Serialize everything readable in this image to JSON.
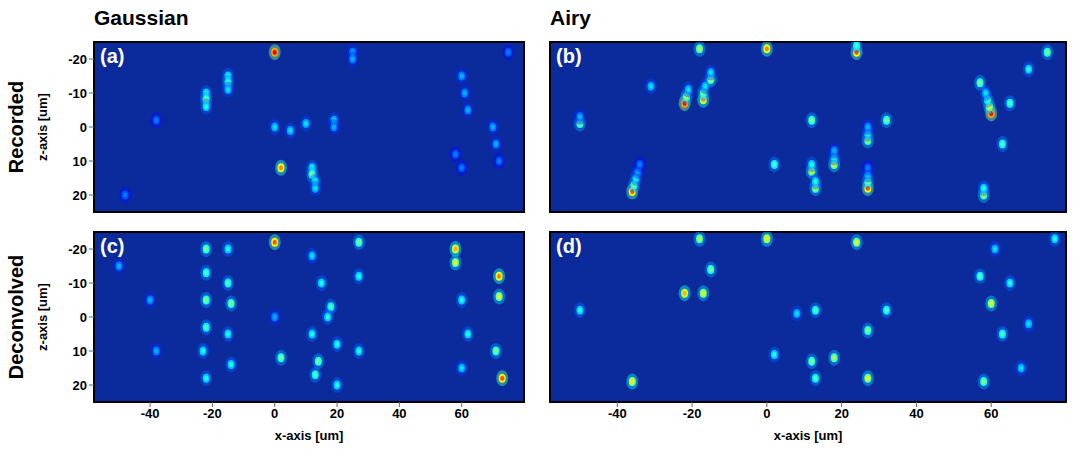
{
  "columns": [
    "Gaussian",
    "Airy"
  ],
  "rows": [
    "Recorded",
    "Deconvolved"
  ],
  "chart_data": [
    {
      "type": "scatter",
      "panel_label": "(a)",
      "ylabel": "z-axis [um]",
      "tick_labels": "y",
      "xlim": [
        -58,
        80
      ],
      "xticks": [
        -40,
        -20,
        0,
        20,
        40,
        60
      ],
      "ylim": [
        25,
        -25
      ],
      "yticks": [
        -20,
        -10,
        0,
        10,
        20
      ],
      "spots": [
        {
          "x": 0,
          "z": -22,
          "intensity": 0.9
        },
        {
          "x": 2,
          "z": 12,
          "intensity": 0.75
        },
        {
          "x": 0,
          "z": 0,
          "intensity": 0.35
        },
        {
          "x": 5,
          "z": 1,
          "intensity": 0.35
        },
        {
          "x": -22,
          "z": -10,
          "intensity": 0.4
        },
        {
          "x": -22,
          "z": -8,
          "intensity": 0.5
        },
        {
          "x": -22,
          "z": -6,
          "intensity": 0.4
        },
        {
          "x": -15,
          "z": -15,
          "intensity": 0.4
        },
        {
          "x": -15,
          "z": -13,
          "intensity": 0.45
        },
        {
          "x": -15,
          "z": -11,
          "intensity": 0.35
        },
        {
          "x": 10,
          "z": -1,
          "intensity": 0.35
        },
        {
          "x": 12,
          "z": 12,
          "intensity": 0.4
        },
        {
          "x": 12,
          "z": 14,
          "intensity": 0.5
        },
        {
          "x": 13,
          "z": 16,
          "intensity": 0.4
        },
        {
          "x": 13,
          "z": 18,
          "intensity": 0.35
        },
        {
          "x": 19,
          "z": -2,
          "intensity": 0.35
        },
        {
          "x": 19,
          "z": 0,
          "intensity": 0.3
        },
        {
          "x": 25,
          "z": -22,
          "intensity": 0.3
        },
        {
          "x": 25,
          "z": -20,
          "intensity": 0.3
        },
        {
          "x": -38,
          "z": -2,
          "intensity": 0.25
        },
        {
          "x": 60,
          "z": -15,
          "intensity": 0.3
        },
        {
          "x": 61,
          "z": -10,
          "intensity": 0.3
        },
        {
          "x": 62,
          "z": -5,
          "intensity": 0.3
        },
        {
          "x": 58,
          "z": 8,
          "intensity": 0.25
        },
        {
          "x": 60,
          "z": 12,
          "intensity": 0.25
        },
        {
          "x": 70,
          "z": 0,
          "intensity": 0.3
        },
        {
          "x": 71,
          "z": 5,
          "intensity": 0.3
        },
        {
          "x": 72,
          "z": 10,
          "intensity": 0.25
        },
        {
          "x": 75,
          "z": -22,
          "intensity": 0.25
        },
        {
          "x": -48,
          "z": 20,
          "intensity": 0.25
        }
      ]
    },
    {
      "type": "scatter",
      "panel_label": "(b)",
      "tick_labels": false,
      "xlim": [
        -58,
        80
      ],
      "xticks": [
        -40,
        -20,
        0,
        20,
        40,
        60
      ],
      "ylim": [
        25,
        -25
      ],
      "yticks": [
        -20,
        -10,
        0,
        10,
        20
      ],
      "spots": [
        {
          "x": 0,
          "z": -23,
          "intensity": 0.75
        },
        {
          "x": -18,
          "z": -23,
          "intensity": 0.55
        },
        {
          "x": 24,
          "z": -22,
          "intensity": 0.8
        },
        {
          "x": 24,
          "z": -24,
          "intensity": 0.45
        },
        {
          "x": -22,
          "z": -7,
          "intensity": 0.9
        },
        {
          "x": -21.5,
          "z": -9,
          "intensity": 0.55
        },
        {
          "x": -21,
          "z": -11,
          "intensity": 0.35
        },
        {
          "x": -17,
          "z": -8,
          "intensity": 0.7
        },
        {
          "x": -17,
          "z": -10,
          "intensity": 0.5
        },
        {
          "x": -16.5,
          "z": -12,
          "intensity": 0.35
        },
        {
          "x": -15,
          "z": -14,
          "intensity": 0.55
        },
        {
          "x": -15,
          "z": -16,
          "intensity": 0.35
        },
        {
          "x": -50,
          "z": -1,
          "intensity": 0.5
        },
        {
          "x": -50,
          "z": -3,
          "intensity": 0.3
        },
        {
          "x": -36,
          "z": 19,
          "intensity": 0.8
        },
        {
          "x": -35.5,
          "z": 17,
          "intensity": 0.5
        },
        {
          "x": -35,
          "z": 15,
          "intensity": 0.4
        },
        {
          "x": -34.5,
          "z": 13,
          "intensity": 0.3
        },
        {
          "x": -34,
          "z": 11,
          "intensity": 0.25
        },
        {
          "x": 12,
          "z": -2,
          "intensity": 0.5
        },
        {
          "x": 18,
          "z": 11,
          "intensity": 0.6
        },
        {
          "x": 18,
          "z": 9,
          "intensity": 0.4
        },
        {
          "x": 18,
          "z": 7,
          "intensity": 0.3
        },
        {
          "x": 12,
          "z": 13,
          "intensity": 0.6
        },
        {
          "x": 12,
          "z": 11,
          "intensity": 0.4
        },
        {
          "x": 13,
          "z": 18,
          "intensity": 0.55
        },
        {
          "x": 13,
          "z": 16,
          "intensity": 0.4
        },
        {
          "x": 27,
          "z": 18,
          "intensity": 0.8
        },
        {
          "x": 27,
          "z": 16,
          "intensity": 0.5
        },
        {
          "x": 27,
          "z": 14,
          "intensity": 0.35
        },
        {
          "x": 27,
          "z": 12,
          "intensity": 0.25
        },
        {
          "x": 27,
          "z": 4,
          "intensity": 0.55
        },
        {
          "x": 27,
          "z": 2,
          "intensity": 0.4
        },
        {
          "x": 27,
          "z": 0,
          "intensity": 0.3
        },
        {
          "x": 32,
          "z": -2,
          "intensity": 0.5
        },
        {
          "x": -31,
          "z": -12,
          "intensity": 0.35
        },
        {
          "x": 2,
          "z": 11,
          "intensity": 0.45
        },
        {
          "x": 60,
          "z": -4,
          "intensity": 0.9
        },
        {
          "x": 59.5,
          "z": -6,
          "intensity": 0.6
        },
        {
          "x": 59,
          "z": -8,
          "intensity": 0.45
        },
        {
          "x": 58.5,
          "z": -10,
          "intensity": 0.35
        },
        {
          "x": 57,
          "z": -13,
          "intensity": 0.5
        },
        {
          "x": 63,
          "z": 5,
          "intensity": 0.45
        },
        {
          "x": 58,
          "z": 20,
          "intensity": 0.55
        },
        {
          "x": 58,
          "z": 18,
          "intensity": 0.4
        },
        {
          "x": 65,
          "z": -7,
          "intensity": 0.45
        },
        {
          "x": 75,
          "z": -22,
          "intensity": 0.5
        },
        {
          "x": 70,
          "z": -17,
          "intensity": 0.4
        }
      ]
    },
    {
      "type": "scatter",
      "panel_label": "(c)",
      "xlabel": "x-axis [um]",
      "ylabel": "z-axis [um]",
      "xlim": [
        -58,
        80
      ],
      "xticks": [
        -40,
        -20,
        0,
        20,
        40,
        60
      ],
      "ylim": [
        25,
        -25
      ],
      "yticks": [
        -20,
        -10,
        0,
        10,
        20
      ],
      "spots": [
        {
          "x": 0,
          "z": -22,
          "intensity": 0.8
        },
        {
          "x": 2,
          "z": 12,
          "intensity": 0.5
        },
        {
          "x": 0,
          "z": 0,
          "intensity": 0.3
        },
        {
          "x": -22,
          "z": -20,
          "intensity": 0.5
        },
        {
          "x": -22,
          "z": -13,
          "intensity": 0.45
        },
        {
          "x": -22,
          "z": -5,
          "intensity": 0.5
        },
        {
          "x": -22,
          "z": 3,
          "intensity": 0.45
        },
        {
          "x": -23,
          "z": 10,
          "intensity": 0.4
        },
        {
          "x": -22,
          "z": 18,
          "intensity": 0.4
        },
        {
          "x": -15,
          "z": -20,
          "intensity": 0.4
        },
        {
          "x": -15,
          "z": -10,
          "intensity": 0.45
        },
        {
          "x": -14,
          "z": -4,
          "intensity": 0.5
        },
        {
          "x": -15,
          "z": 5,
          "intensity": 0.4
        },
        {
          "x": -14,
          "z": 14,
          "intensity": 0.4
        },
        {
          "x": -40,
          "z": -5,
          "intensity": 0.3
        },
        {
          "x": -38,
          "z": 10,
          "intensity": 0.3
        },
        {
          "x": -50,
          "z": -15,
          "intensity": 0.3
        },
        {
          "x": 12,
          "z": -18,
          "intensity": 0.35
        },
        {
          "x": 15,
          "z": -10,
          "intensity": 0.4
        },
        {
          "x": 18,
          "z": -3,
          "intensity": 0.45
        },
        {
          "x": 12,
          "z": 5,
          "intensity": 0.4
        },
        {
          "x": 14,
          "z": 13,
          "intensity": 0.5
        },
        {
          "x": 13,
          "z": 17,
          "intensity": 0.45
        },
        {
          "x": 20,
          "z": 20,
          "intensity": 0.4
        },
        {
          "x": 17,
          "z": 0,
          "intensity": 0.4
        },
        {
          "x": 20,
          "z": 8,
          "intensity": 0.4
        },
        {
          "x": 27,
          "z": -22,
          "intensity": 0.5
        },
        {
          "x": 27,
          "z": -12,
          "intensity": 0.4
        },
        {
          "x": 27,
          "z": 10,
          "intensity": 0.4
        },
        {
          "x": 58,
          "z": -20,
          "intensity": 0.7
        },
        {
          "x": 58,
          "z": -16,
          "intensity": 0.6
        },
        {
          "x": 60,
          "z": -5,
          "intensity": 0.4
        },
        {
          "x": 62,
          "z": 5,
          "intensity": 0.4
        },
        {
          "x": 60,
          "z": 15,
          "intensity": 0.35
        },
        {
          "x": 72,
          "z": -12,
          "intensity": 0.75
        },
        {
          "x": 72,
          "z": -6,
          "intensity": 0.6
        },
        {
          "x": 73,
          "z": 18,
          "intensity": 0.8
        },
        {
          "x": 71,
          "z": 10,
          "intensity": 0.5
        }
      ]
    },
    {
      "type": "scatter",
      "panel_label": "(d)",
      "xlabel": "x-axis [um]",
      "tick_labels": "x",
      "xlim": [
        -58,
        80
      ],
      "xticks": [
        -40,
        -20,
        0,
        20,
        40,
        60
      ],
      "ylim": [
        25,
        -25
      ],
      "yticks": [
        -20,
        -10,
        0,
        10,
        20
      ],
      "spots": [
        {
          "x": 0,
          "z": -23,
          "intensity": 0.65
        },
        {
          "x": -18,
          "z": -23,
          "intensity": 0.55
        },
        {
          "x": 24,
          "z": -22,
          "intensity": 0.6
        },
        {
          "x": -22,
          "z": -7,
          "intensity": 0.7
        },
        {
          "x": -17,
          "z": -7,
          "intensity": 0.6
        },
        {
          "x": -15,
          "z": -14,
          "intensity": 0.5
        },
        {
          "x": -50,
          "z": -2,
          "intensity": 0.4
        },
        {
          "x": -36,
          "z": 19,
          "intensity": 0.65
        },
        {
          "x": 8,
          "z": -1,
          "intensity": 0.35
        },
        {
          "x": 13,
          "z": -2,
          "intensity": 0.45
        },
        {
          "x": 18,
          "z": 12,
          "intensity": 0.55
        },
        {
          "x": 12,
          "z": 13,
          "intensity": 0.5
        },
        {
          "x": 13,
          "z": 18,
          "intensity": 0.45
        },
        {
          "x": 27,
          "z": 18,
          "intensity": 0.6
        },
        {
          "x": 27,
          "z": 4,
          "intensity": 0.5
        },
        {
          "x": 32,
          "z": -2,
          "intensity": 0.45
        },
        {
          "x": 2,
          "z": 11,
          "intensity": 0.4
        },
        {
          "x": 60,
          "z": -4,
          "intensity": 0.6
        },
        {
          "x": 57,
          "z": -12,
          "intensity": 0.45
        },
        {
          "x": 63,
          "z": 5,
          "intensity": 0.45
        },
        {
          "x": 58,
          "z": 19,
          "intensity": 0.5
        },
        {
          "x": 65,
          "z": -10,
          "intensity": 0.4
        },
        {
          "x": 70,
          "z": 2,
          "intensity": 0.35
        },
        {
          "x": 68,
          "z": 15,
          "intensity": 0.35
        },
        {
          "x": 77,
          "z": -23,
          "intensity": 0.4
        },
        {
          "x": 61,
          "z": -20,
          "intensity": 0.35
        }
      ]
    }
  ]
}
